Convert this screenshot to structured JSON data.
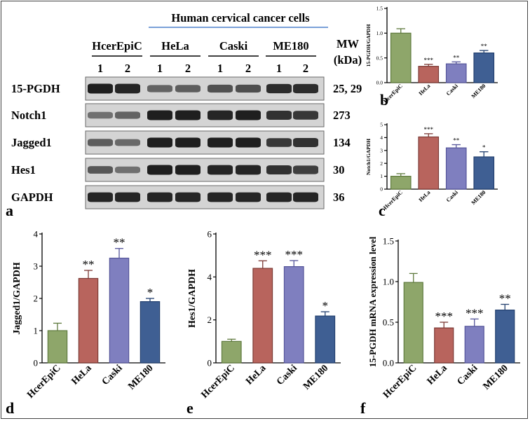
{
  "western_blot": {
    "group_header": "Human cervical cancer cells",
    "cell_lines": [
      "HcerEpiC",
      "HeLa",
      "Caski",
      "ME180"
    ],
    "replicates": [
      "1",
      "2"
    ],
    "mw_header": [
      "MW",
      "(kDa)"
    ],
    "proteins": [
      {
        "name": "15-PGDH",
        "mw": "25,  29",
        "intensity": [
          1.0,
          0.95,
          0.45,
          0.5,
          0.6,
          0.62,
          0.9,
          0.9
        ]
      },
      {
        "name": "Notch1",
        "mw": "273",
        "intensity": [
          0.35,
          0.45,
          1.0,
          1.0,
          0.95,
          1.0,
          0.85,
          0.8
        ]
      },
      {
        "name": "Jagged1",
        "mw": "134",
        "intensity": [
          0.5,
          0.4,
          1.0,
          1.0,
          1.0,
          1.0,
          0.8,
          0.85
        ]
      },
      {
        "name": "Hes1",
        "mw": "30",
        "intensity": [
          0.55,
          0.35,
          1.0,
          1.0,
          0.95,
          0.95,
          0.85,
          0.75
        ]
      },
      {
        "name": "GAPDH",
        "mw": "36",
        "intensity": [
          0.95,
          0.95,
          0.95,
          0.95,
          0.95,
          0.95,
          0.95,
          0.95
        ]
      }
    ],
    "panel_label": "a"
  },
  "chart_data": [
    {
      "panel": "b",
      "type": "bar",
      "categories": [
        "HcerEpiC",
        "HeLa",
        "Caski",
        "ME180"
      ],
      "values": [
        1.0,
        0.33,
        0.38,
        0.6
      ],
      "errors": [
        0.09,
        0.04,
        0.04,
        0.05
      ],
      "significance": [
        "",
        "***",
        "**",
        "**"
      ],
      "ylabel": "15-PGDH/GAPDH",
      "ylim": [
        0,
        1.5
      ],
      "yticks": [
        "0.0",
        "0.5",
        "1.0",
        "1.5"
      ]
    },
    {
      "panel": "c",
      "type": "bar",
      "categories": [
        "HcerEpiC",
        "HeLa",
        "Caski",
        "ME180"
      ],
      "values": [
        1.0,
        4.05,
        3.2,
        2.5
      ],
      "errors": [
        0.2,
        0.25,
        0.25,
        0.4
      ],
      "significance": [
        "",
        "***",
        "**",
        "*"
      ],
      "ylabel": "Notch1/GAPDH",
      "ylim": [
        0,
        5
      ],
      "yticks": [
        "0",
        "1",
        "2",
        "3",
        "4",
        "5"
      ]
    },
    {
      "panel": "d",
      "type": "bar",
      "categories": [
        "HcerEpiC",
        "HeLa",
        "Caski",
        "ME180"
      ],
      "values": [
        1.0,
        2.62,
        3.25,
        1.9
      ],
      "errors": [
        0.23,
        0.25,
        0.3,
        0.1
      ],
      "significance": [
        "",
        "**",
        "**",
        "*"
      ],
      "ylabel": "Jagged1/GAPDH",
      "ylim": [
        0,
        4
      ],
      "yticks": [
        "0",
        "1",
        "2",
        "3",
        "4"
      ]
    },
    {
      "panel": "e",
      "type": "bar",
      "categories": [
        "HcerEpiC",
        "HeLa",
        "Caski",
        "ME180"
      ],
      "values": [
        1.0,
        4.4,
        4.48,
        2.18
      ],
      "errors": [
        0.1,
        0.35,
        0.28,
        0.2
      ],
      "significance": [
        "",
        "***",
        "***",
        "*"
      ],
      "ylabel": "Hes1/GAPDH",
      "ylim": [
        0,
        6
      ],
      "yticks": [
        "0",
        "2",
        "4",
        "6"
      ]
    },
    {
      "panel": "f",
      "type": "bar",
      "categories": [
        "HcerEpiC",
        "HeLa",
        "Caski",
        "ME180"
      ],
      "values": [
        0.99,
        0.43,
        0.45,
        0.65
      ],
      "errors": [
        0.11,
        0.07,
        0.09,
        0.07
      ],
      "significance": [
        "",
        "***",
        "***",
        "**"
      ],
      "ylabel": "15-PGDH mRNA expression level",
      "ylim": [
        0,
        1.5
      ],
      "yticks": [
        "0.0",
        "0.5",
        "1.0",
        "1.5"
      ]
    }
  ],
  "colors": {
    "bars": [
      "#8ea66a",
      "#b8645d",
      "#7f7fbf",
      "#3f5f93"
    ],
    "bar_edges": [
      "#5f7a3e",
      "#7c3a35",
      "#55559a",
      "#23406f"
    ],
    "header_line": "#7aa0d8"
  }
}
